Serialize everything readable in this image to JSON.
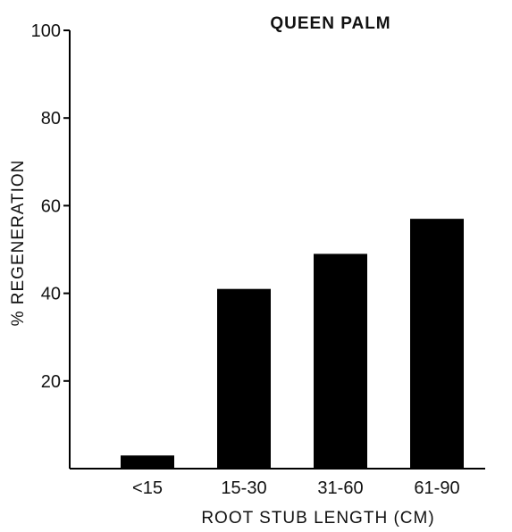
{
  "chart_data": {
    "type": "bar",
    "title": "QUEEN PALM",
    "xlabel": "ROOT STUB LENGTH (CM)",
    "ylabel": "% REGENERATION",
    "categories": [
      "<15",
      "15-30",
      "31-60",
      "61-90"
    ],
    "values": [
      3,
      41,
      49,
      57
    ],
    "ylim": [
      0,
      100
    ],
    "yticks": [
      "20",
      "40",
      "60",
      "80",
      "100"
    ],
    "grid": false,
    "bar_color": "#000000"
  }
}
